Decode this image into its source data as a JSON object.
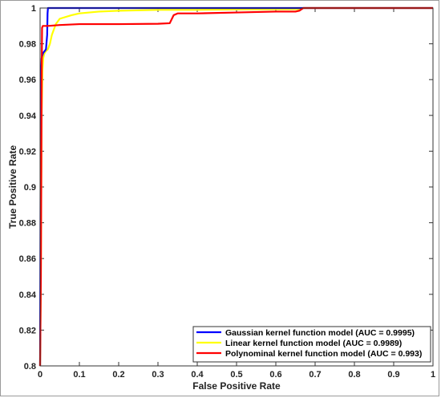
{
  "chart_data": {
    "type": "line",
    "title": "",
    "xlabel": "False Positive Rate",
    "ylabel": "True Positive Rate",
    "xlim": [
      0,
      1
    ],
    "ylim": [
      0.8,
      1
    ],
    "xticks": [
      0,
      0.1,
      0.2,
      0.3,
      0.4,
      0.5,
      0.6,
      0.7,
      0.8,
      0.9,
      1
    ],
    "yticks": [
      0.8,
      0.82,
      0.84,
      0.86,
      0.88,
      0.9,
      0.92,
      0.94,
      0.96,
      0.98,
      1
    ],
    "xtick_labels": [
      "0",
      "0.1",
      "0.2",
      "0.3",
      "0.4",
      "0.5",
      "0.6",
      "0.7",
      "0.8",
      "0.9",
      "1"
    ],
    "ytick_labels": [
      "0.8",
      "0.82",
      "0.84",
      "0.86",
      "0.88",
      "0.9",
      "0.92",
      "0.94",
      "0.96",
      "0.98",
      "1"
    ],
    "grid": false,
    "legend_position": "bottom-right",
    "series": [
      {
        "name": "Gaussian kernel function model (AUC = 0.9995)",
        "color": "#0000ff",
        "x": [
          0,
          0.002,
          0.004,
          0.005,
          0.008,
          0.012,
          0.015,
          0.018,
          0.019,
          0.02,
          0.03,
          0.1,
          0.3,
          0.6,
          1.0
        ],
        "y": [
          0.8,
          0.96,
          0.972,
          0.973,
          0.975,
          0.976,
          0.977,
          0.985,
          0.997,
          1.0,
          1.0,
          1.0,
          1.0,
          1.0,
          1.0
        ]
      },
      {
        "name": "Linear kernel function model (AUC = 0.9989)",
        "color": "#ffff00",
        "x": [
          0,
          0.002,
          0.004,
          0.006,
          0.008,
          0.01,
          0.012,
          0.015,
          0.02,
          0.025,
          0.03,
          0.04,
          0.05,
          0.08,
          0.1,
          0.15,
          0.2,
          0.3,
          0.4,
          0.5,
          0.6,
          0.66,
          0.67,
          1.0
        ],
        "y": [
          0.8,
          0.85,
          0.94,
          0.965,
          0.972,
          0.974,
          0.975,
          0.976,
          0.977,
          0.98,
          0.985,
          0.991,
          0.994,
          0.996,
          0.997,
          0.998,
          0.9985,
          0.999,
          0.999,
          0.9992,
          0.9993,
          0.9994,
          1.0,
          1.0
        ]
      },
      {
        "name": "Polynominal kernel function model (AUC = 0.993)",
        "color": "#ff0000",
        "x": [
          0,
          0.002,
          0.004,
          0.005,
          0.007,
          0.01,
          0.02,
          0.05,
          0.1,
          0.2,
          0.3,
          0.33,
          0.34,
          0.35,
          0.4,
          0.5,
          0.6,
          0.65,
          0.66,
          0.67,
          0.7,
          0.8,
          0.9,
          1.0
        ],
        "y": [
          0.8,
          0.85,
          0.96,
          0.989,
          0.99,
          0.99,
          0.99,
          0.9905,
          0.991,
          0.991,
          0.9912,
          0.9915,
          0.996,
          0.997,
          0.997,
          0.9975,
          0.998,
          0.998,
          0.9985,
          1.0,
          1.0,
          1.0,
          1.0,
          1.0
        ]
      }
    ]
  }
}
